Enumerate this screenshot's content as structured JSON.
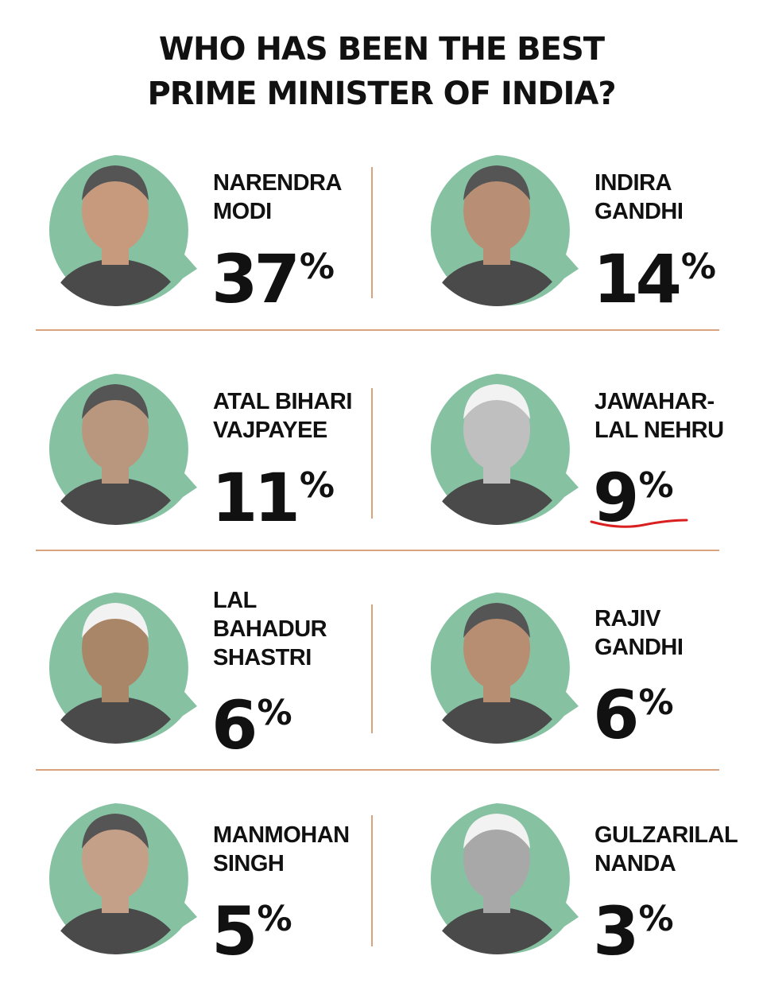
{
  "title": [
    "WHO HAS BEEN THE BEST",
    "PRIME MINISTER OF INDIA?"
  ],
  "items": [
    {
      "name": [
        "NARENDRA",
        "MODI"
      ],
      "share": "37%"
    },
    {
      "name": [
        "INDIRA",
        "GANDHI"
      ],
      "share": "14%"
    },
    {
      "name": [
        "ATAL BIHARI",
        "VAJPAYEE"
      ],
      "share": "11%"
    },
    {
      "name": [
        "JAWAHAR-",
        "LAL NEHRU"
      ],
      "share": "9%"
    },
    {
      "name": [
        "LAL",
        "BAHADUR",
        "SHASTRI"
      ],
      "share": "6%"
    },
    {
      "name": [
        "RAJIV",
        "GANDHI"
      ],
      "share": "6%"
    },
    {
      "name": [
        "MANMOHAN",
        "SINGH"
      ],
      "share": "5%"
    },
    {
      "name": [
        "GULZARILAL",
        "NANDA"
      ],
      "share": "3%"
    }
  ]
}
